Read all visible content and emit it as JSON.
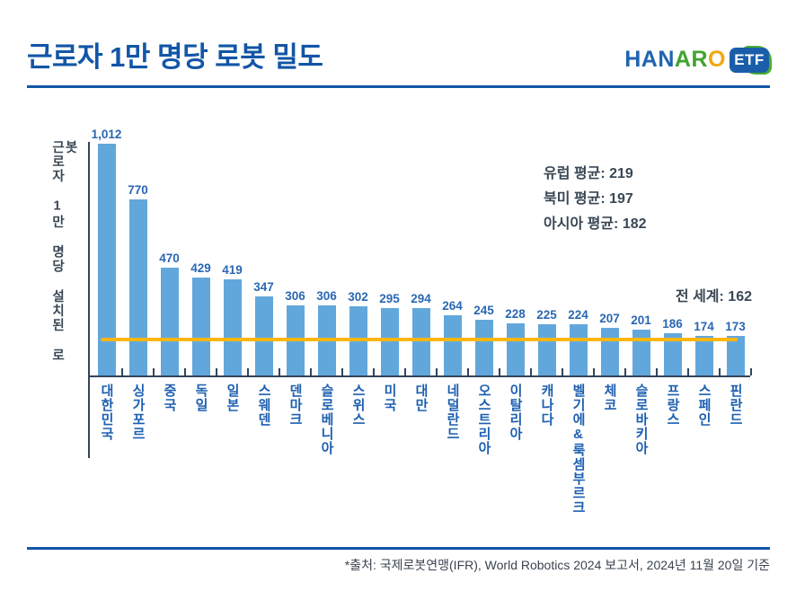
{
  "header": {
    "title": "근로자 1만 명당 로봇 밀도",
    "logo": {
      "letters": [
        {
          "ch": "H",
          "color": "#1E64B0"
        },
        {
          "ch": "A",
          "color": "#1E64B0"
        },
        {
          "ch": "N",
          "color": "#1E64B0"
        },
        {
          "ch": "A",
          "color": "#3FA42E"
        },
        {
          "ch": "R",
          "color": "#3FA42E"
        },
        {
          "ch": "O",
          "color": "#F0A70F"
        }
      ],
      "badge": "ETF",
      "badge_color": "#1A5EA9",
      "badge_accent_color": "#4CAE2F"
    }
  },
  "chart_data": {
    "type": "bar",
    "title": "근로자 1만 명당 로봇 밀도",
    "xlabel": "",
    "ylabel": "근로자 1만 명당 설치된 로봇",
    "ylim": [
      0,
      1050
    ],
    "grid": false,
    "bar_color": "#62A7DC",
    "categories": [
      "대한민국",
      "싱가포르",
      "중국",
      "독일",
      "일본",
      "스웨덴",
      "덴마크",
      "슬로베니아",
      "스위스",
      "미국",
      "대만",
      "네덜란드",
      "오스트리아",
      "이탈리아",
      "캐나다",
      "벨기에&룩셈부르크",
      "체코",
      "슬로바키아",
      "프랑스",
      "스페인",
      "핀란드"
    ],
    "values": [
      1012,
      770,
      470,
      429,
      419,
      347,
      306,
      306,
      302,
      295,
      294,
      264,
      245,
      228,
      225,
      224,
      207,
      201,
      186,
      174,
      173
    ],
    "value_labels": [
      "1,012",
      "770",
      "470",
      "429",
      "419",
      "347",
      "306",
      "306",
      "302",
      "295",
      "294",
      "264",
      "245",
      "228",
      "225",
      "224",
      "207",
      "201",
      "186",
      "174",
      "173"
    ],
    "annotations": [
      "유럽 평균: 219",
      "북미 평균: 197",
      "아시아 평균: 182"
    ],
    "reference_line": {
      "label": "전 세계: 162",
      "value": 162,
      "color": "#FBB612"
    }
  },
  "footer": {
    "source": "*출처: 국제로봇연맹(IFR), World Robotics 2024 보고서, 2024년 11월 20일 기준"
  }
}
